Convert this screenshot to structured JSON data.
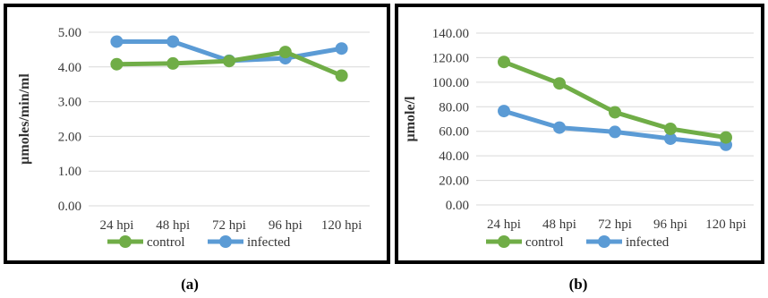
{
  "chart_data": [
    {
      "type": "line",
      "categories": [
        "24 hpi",
        "48 hpi",
        "72 hpi",
        "96 hpi",
        "120 hpi"
      ],
      "series": [
        {
          "name": "control",
          "values": [
            4.08,
            4.1,
            4.17,
            4.43,
            3.75
          ]
        },
        {
          "name": "infected",
          "values": [
            4.73,
            4.73,
            4.18,
            4.25,
            4.53
          ]
        }
      ],
      "title": "",
      "xlabel": "",
      "ylabel": "µmoles/min/ml",
      "ylim": [
        0,
        5
      ],
      "yticks": [
        "0.00",
        "1.00",
        "2.00",
        "3.00",
        "4.00",
        "5.00"
      ],
      "grid": true,
      "legend": "bottom",
      "caption": "(a)"
    },
    {
      "type": "line",
      "categories": [
        "24 hpi",
        "48 hpi",
        "72 hpi",
        "96 hpi",
        "120 hpi"
      ],
      "series": [
        {
          "name": "control",
          "values": [
            116.5,
            99.0,
            75.5,
            62.0,
            55.0
          ]
        },
        {
          "name": "infected",
          "values": [
            76.5,
            63.0,
            59.5,
            54.0,
            49.0
          ]
        }
      ],
      "title": "",
      "xlabel": "",
      "ylabel": "µmole/l",
      "ylim": [
        0,
        140
      ],
      "yticks": [
        "0.00",
        "20.00",
        "40.00",
        "60.00",
        "80.00",
        "100.00",
        "120.00",
        "140.00"
      ],
      "grid": true,
      "legend": "bottom",
      "caption": "(b)"
    }
  ],
  "colors": {
    "control": "#70ad47",
    "infected": "#5b9bd5",
    "grid": "#d9d9d9"
  }
}
